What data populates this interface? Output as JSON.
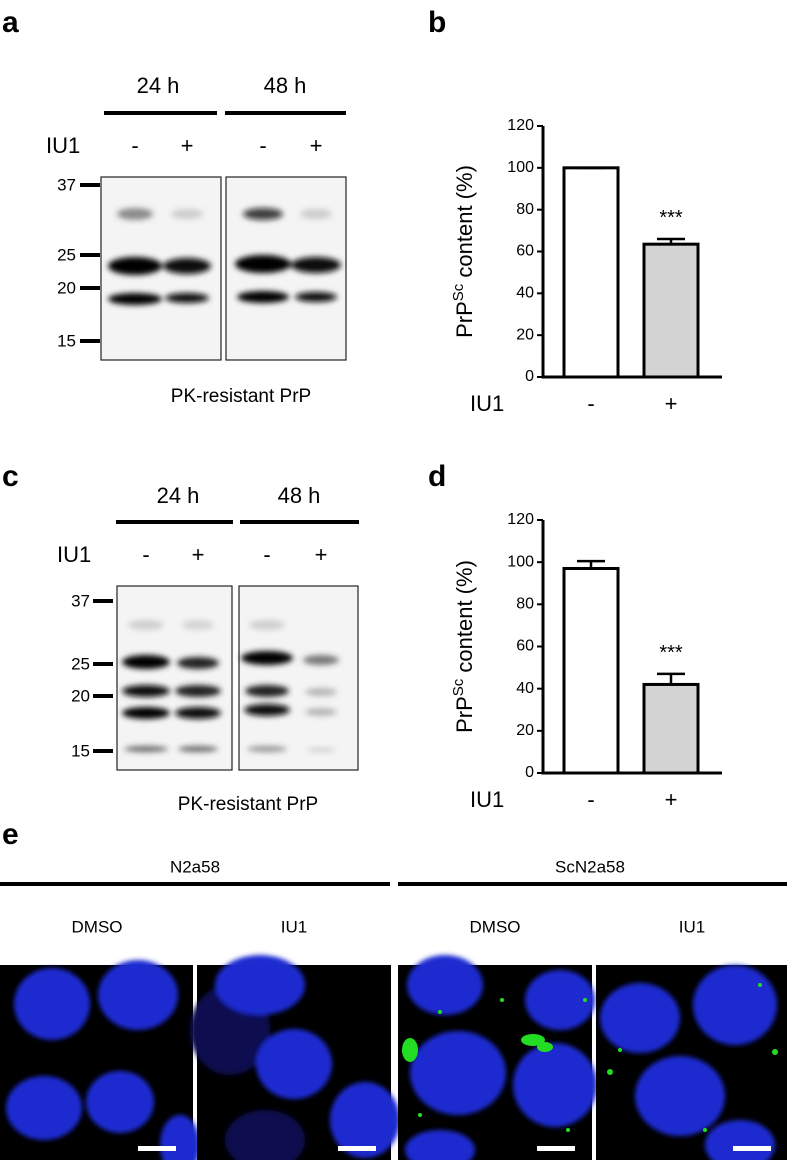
{
  "panels": {
    "a": {
      "label": "a",
      "times": [
        "24 h",
        "48 h"
      ],
      "treatment": "IU1",
      "signs": [
        "-",
        "+",
        "-",
        "+"
      ],
      "markers": [
        "37",
        "25",
        "20",
        "15"
      ],
      "caption": "PK-resistant PrP"
    },
    "c": {
      "label": "c",
      "times": [
        "24 h",
        "48 h"
      ],
      "treatment": "IU1",
      "signs": [
        "-",
        "+",
        "-",
        "+"
      ],
      "markers": [
        "37",
        "25",
        "20",
        "15"
      ],
      "caption": "PK-resistant PrP"
    },
    "e": {
      "label": "e",
      "groups": [
        "N2a58",
        "ScN2a58"
      ],
      "conditions": [
        "DMSO",
        "IU1",
        "DMSO",
        "IU1"
      ]
    }
  },
  "chart_data": [
    {
      "type": "bar",
      "label": "b",
      "categories": [
        "-",
        "+"
      ],
      "values": [
        100,
        63.5
      ],
      "errors": [
        0,
        2.5
      ],
      "colors": [
        "#ffffff",
        "#d3d3d3"
      ],
      "annotations": [
        null,
        "***"
      ],
      "xlabel": "IU1",
      "ylabel": [
        "PrP",
        "Sc",
        " content (%)"
      ],
      "ylim": [
        0,
        120
      ],
      "yticks": [
        0,
        20,
        40,
        60,
        80,
        100,
        120
      ]
    },
    {
      "type": "bar",
      "label": "d",
      "categories": [
        "-",
        "+"
      ],
      "values": [
        97,
        42
      ],
      "errors": [
        3.5,
        5
      ],
      "colors": [
        "#ffffff",
        "#d3d3d3"
      ],
      "annotations": [
        null,
        "***"
      ],
      "xlabel": "IU1",
      "ylabel": [
        "PrP",
        "Sc",
        " content (%)"
      ],
      "ylim": [
        0,
        120
      ],
      "yticks": [
        0,
        20,
        40,
        60,
        80,
        100,
        120
      ]
    }
  ]
}
